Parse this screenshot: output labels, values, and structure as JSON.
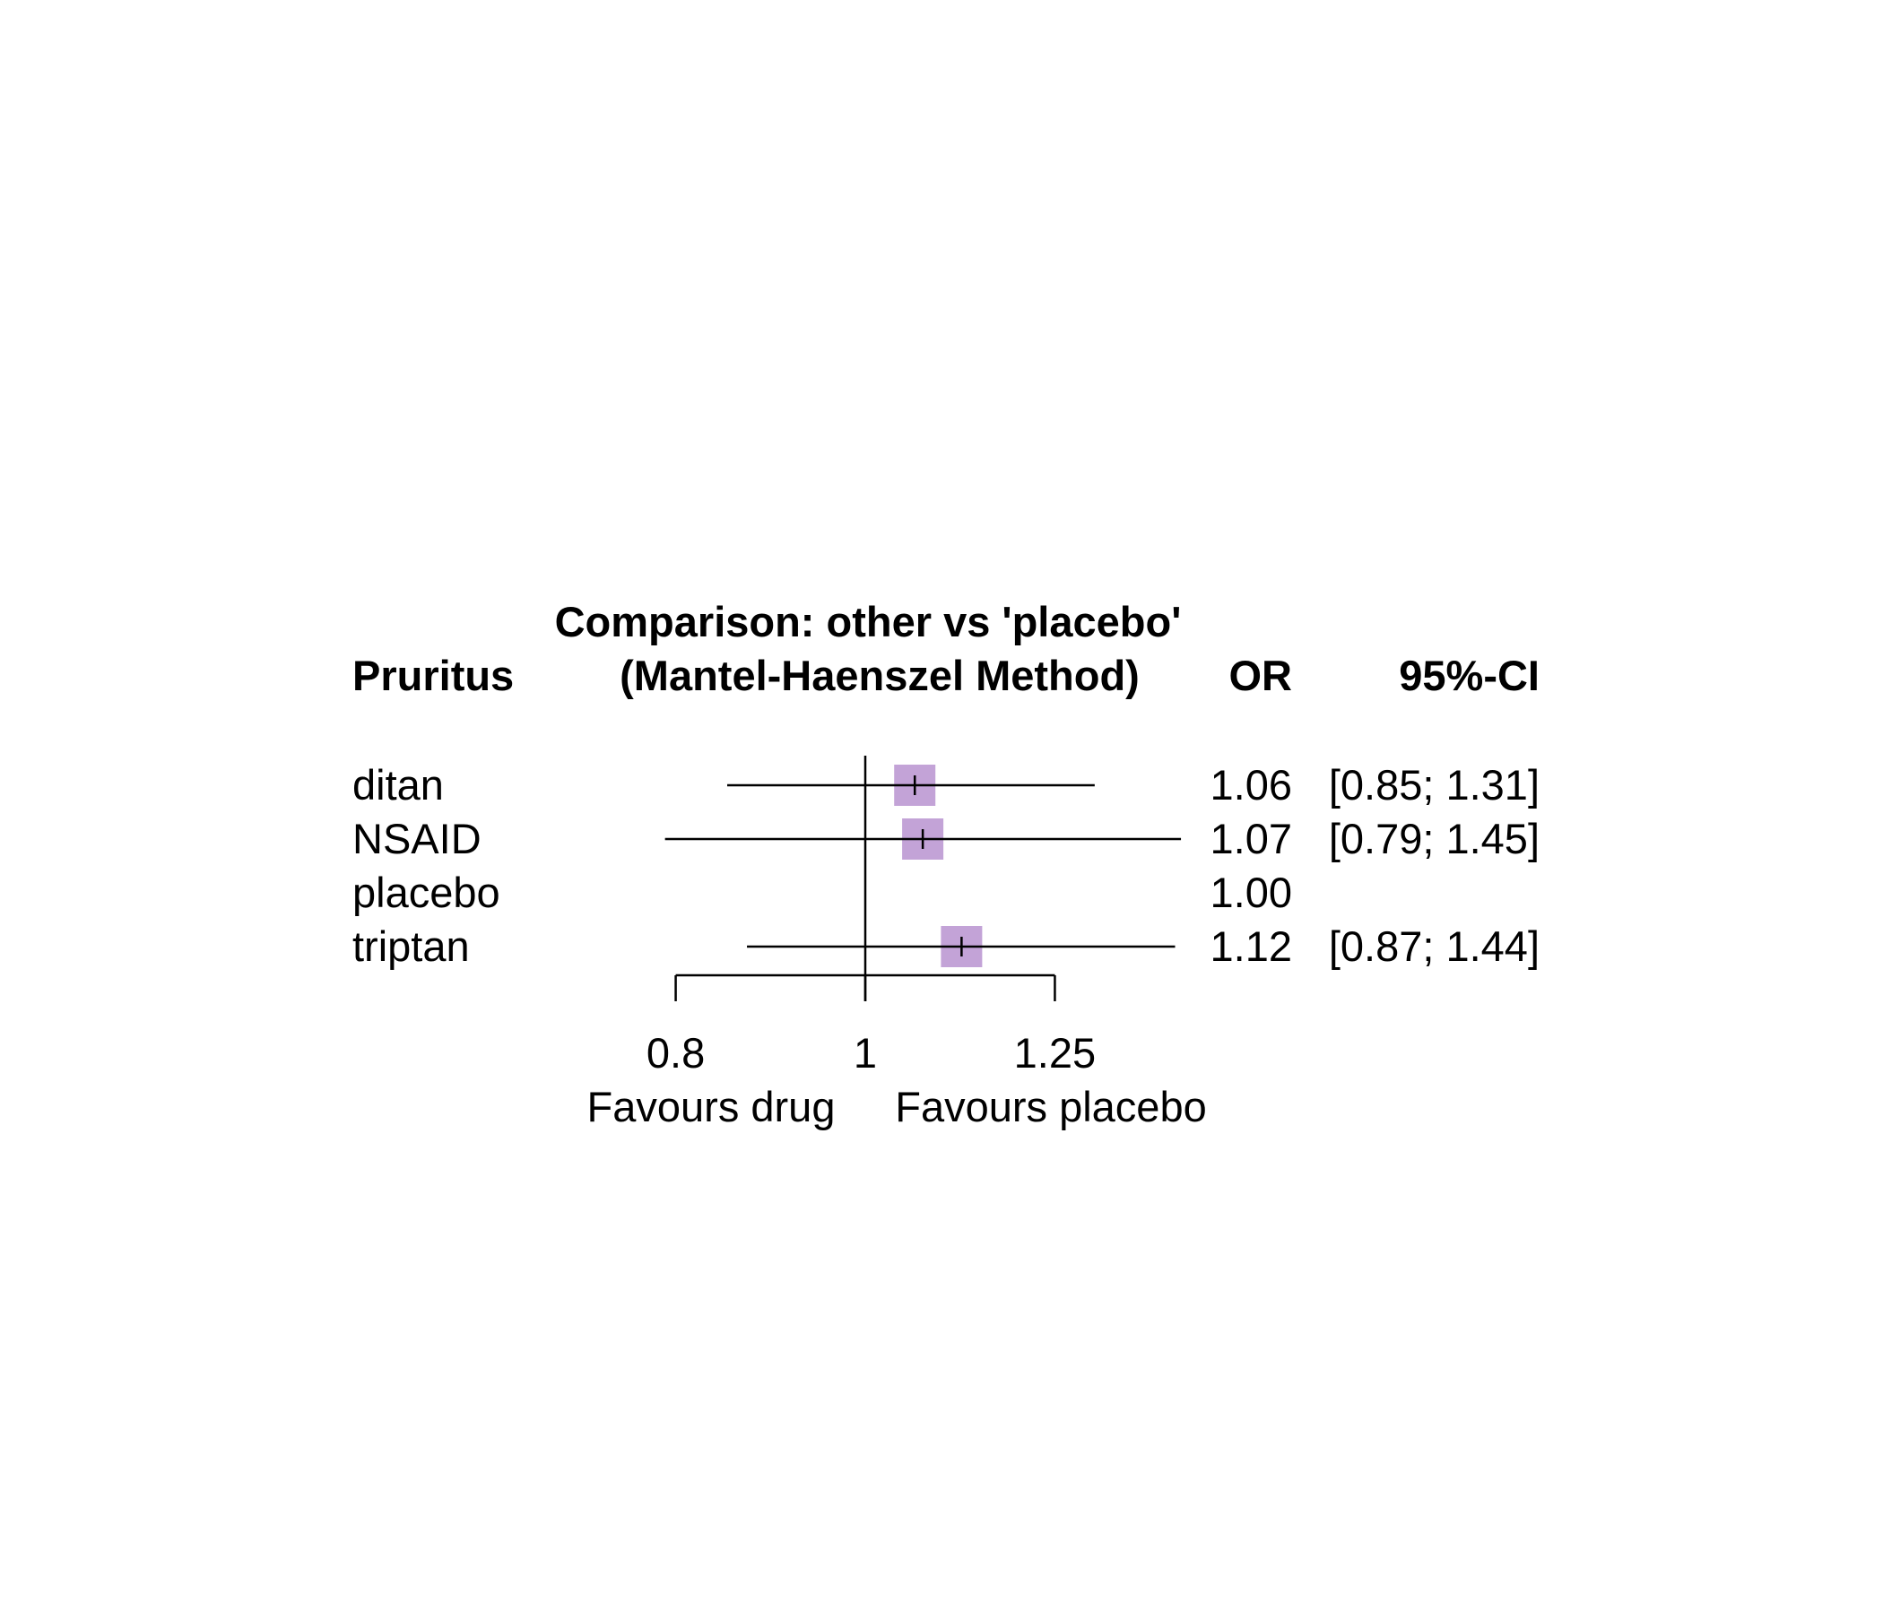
{
  "chart_data": {
    "type": "forest",
    "title": "Comparison: other vs 'placebo'",
    "subtitle": "(Mantel-Haenszel Method)",
    "outcome_label": "Pruritus",
    "effect_label": "OR",
    "ci_label": "95%-CI",
    "scale": "log",
    "reference_value": 1,
    "xticks": [
      0.8,
      1,
      1.25
    ],
    "xtick_labels": [
      "0.8",
      "1",
      "1.25"
    ],
    "favours_left": "Favours drug",
    "favours_right": "Favours placebo",
    "square_color": "#c3a3d7",
    "rows": [
      {
        "name": "ditan",
        "or": 1.06,
        "lower": 0.85,
        "upper": 1.31,
        "or_text": "1.06",
        "ci_text": "[0.85; 1.31]",
        "has_ci": true
      },
      {
        "name": "NSAID",
        "or": 1.07,
        "lower": 0.79,
        "upper": 1.45,
        "or_text": "1.07",
        "ci_text": "[0.79; 1.45]",
        "has_ci": true
      },
      {
        "name": "placebo",
        "or": 1.0,
        "lower": 1.0,
        "upper": 1.0,
        "or_text": "1.00",
        "ci_text": "",
        "has_ci": false
      },
      {
        "name": "triptan",
        "or": 1.12,
        "lower": 0.87,
        "upper": 1.44,
        "or_text": "1.12",
        "ci_text": "[0.87; 1.44]",
        "has_ci": true
      }
    ]
  }
}
